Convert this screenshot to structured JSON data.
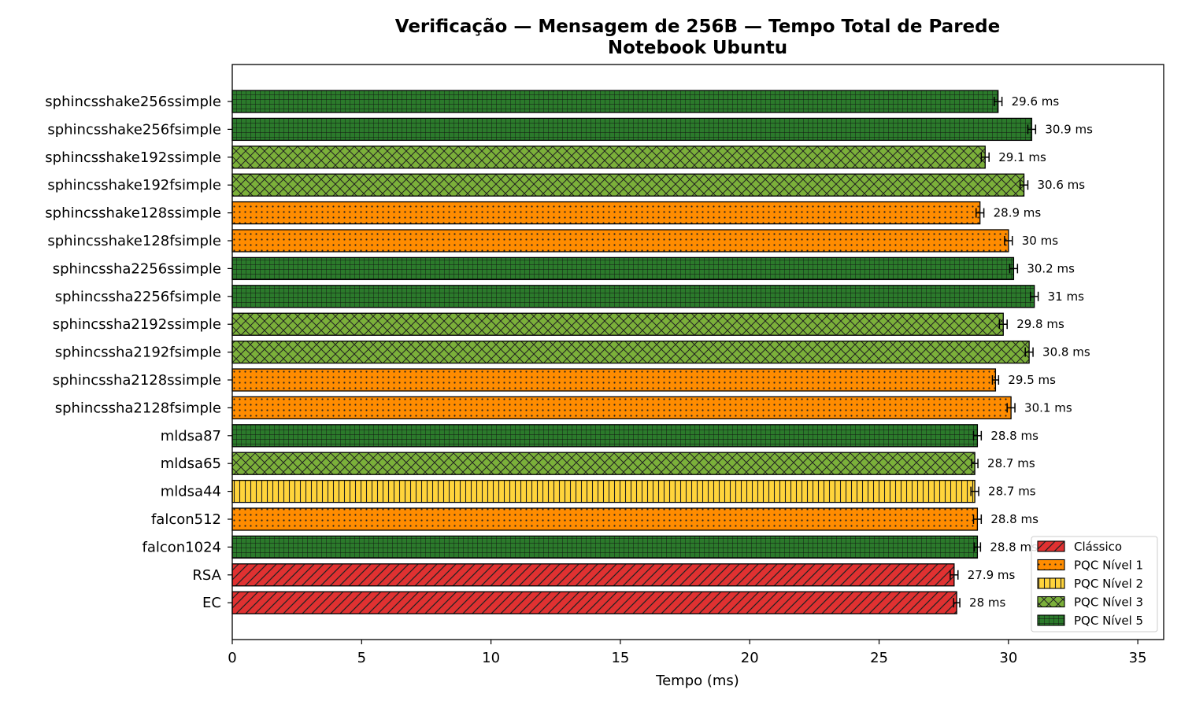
{
  "chart_data": {
    "type": "bar",
    "orientation": "horizontal",
    "title": "Verificação — Mensagem de 256B — Tempo Total de Parede",
    "subtitle": "Notebook Ubuntu",
    "xlabel": "Tempo (ms)",
    "ylabel": "",
    "xlim": [
      0,
      36
    ],
    "xticks": [
      0,
      5,
      10,
      15,
      20,
      25,
      30,
      35
    ],
    "value_suffix": " ms",
    "grid": false,
    "legend_position": "lower-right",
    "categories": [
      "sphincsshake256ssimple",
      "sphincsshake256fsimple",
      "sphincsshake192ssimple",
      "sphincsshake192fsimple",
      "sphincsshake128ssimple",
      "sphincsshake128fsimple",
      "sphincssha2256ssimple",
      "sphincssha2256fsimple",
      "sphincssha2192ssimple",
      "sphincssha2192fsimple",
      "sphincssha2128ssimple",
      "sphincssha2128fsimple",
      "mldsa87",
      "mldsa65",
      "mldsa44",
      "falcon512",
      "falcon1024",
      "RSA",
      "EC"
    ],
    "values": [
      29.6,
      30.9,
      29.1,
      30.6,
      28.9,
      30,
      30.2,
      31,
      29.8,
      30.8,
      29.5,
      30.1,
      28.8,
      28.7,
      28.7,
      28.8,
      28.8,
      27.9,
      28
    ],
    "errors": [
      0.15,
      0.15,
      0.15,
      0.15,
      0.15,
      0.15,
      0.15,
      0.15,
      0.15,
      0.15,
      0.12,
      0.15,
      0.15,
      0.12,
      0.15,
      0.15,
      0.12,
      0.15,
      0.12
    ],
    "value_labels": [
      "29.6 ms",
      "30.9 ms",
      "29.1 ms",
      "30.6 ms",
      "28.9 ms",
      "30 ms",
      "30.2 ms",
      "31 ms",
      "29.8 ms",
      "30.8 ms",
      "29.5 ms",
      "30.1 ms",
      "28.8 ms",
      "28.7 ms",
      "28.7 ms",
      "28.8 ms",
      "28.8 ms",
      "27.9 ms",
      "28 ms"
    ],
    "groups": [
      "n5",
      "n5",
      "n3",
      "n3",
      "n1",
      "n1",
      "n5",
      "n5",
      "n3",
      "n3",
      "n1",
      "n1",
      "n5",
      "n3",
      "n2",
      "n1",
      "n5",
      "classic",
      "classic"
    ],
    "legend": [
      {
        "key": "classic",
        "label": "Clássico",
        "color": "#e03131",
        "pattern": "diagonal"
      },
      {
        "key": "n1",
        "label": "PQC Nível 1",
        "color": "#ff8c00",
        "pattern": "dots"
      },
      {
        "key": "n2",
        "label": "PQC Nível 2",
        "color": "#ffd43b",
        "pattern": "vertical"
      },
      {
        "key": "n3",
        "label": "PQC Nível 3",
        "color": "#7bb03a",
        "pattern": "crosshatch"
      },
      {
        "key": "n5",
        "label": "PQC Nível 5",
        "color": "#2b7a2b",
        "pattern": "grid"
      }
    ]
  }
}
